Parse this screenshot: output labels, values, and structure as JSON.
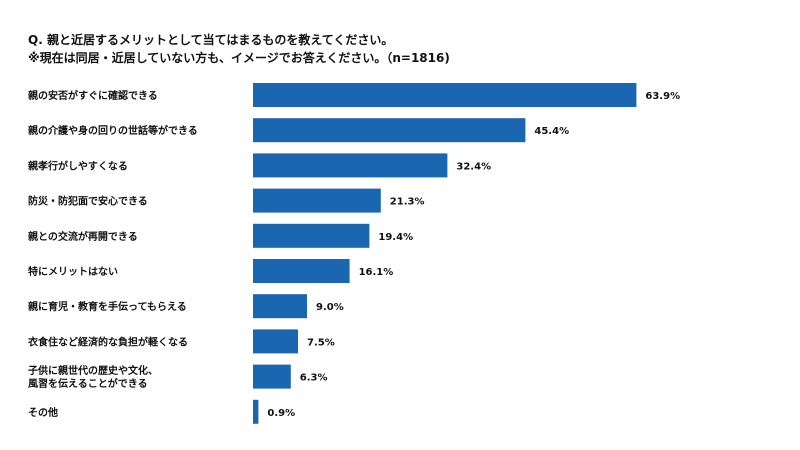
{
  "chart_data": {
    "type": "bar",
    "orientation": "horizontal",
    "title": "Q. 親と近居するメリットとして当てはまるものを教えてください。",
    "subtitle": "※現在は同居・近居していない方も、イメージでお答えください。（n=1816)",
    "categories": [
      "親の安否がすぐに確認できる",
      "親の介護や身の回りの世話等ができる",
      "親孝行がしやすくなる",
      "防災・防犯面で安心できる",
      "親との交流が再開できる",
      "特にメリットはない",
      "親に育児・教育を手伝ってもらえる",
      "衣食住など経済的な負担が軽くなる",
      "子供に親世代の歴史や文化、\n風習を伝えることができる",
      "その他"
    ],
    "values": [
      63.9,
      45.4,
      32.4,
      21.3,
      19.4,
      16.1,
      9.0,
      7.5,
      6.3,
      0.9
    ],
    "value_labels": [
      "63.9%",
      "45.4%",
      "32.4%",
      "21.3%",
      "19.4%",
      "16.1%",
      "9.0%",
      "7.5%",
      "6.3%",
      "0.9%"
    ],
    "bar_color": "#1b66b1",
    "xlim": [
      0,
      100
    ],
    "grid": false,
    "legend": "none"
  }
}
